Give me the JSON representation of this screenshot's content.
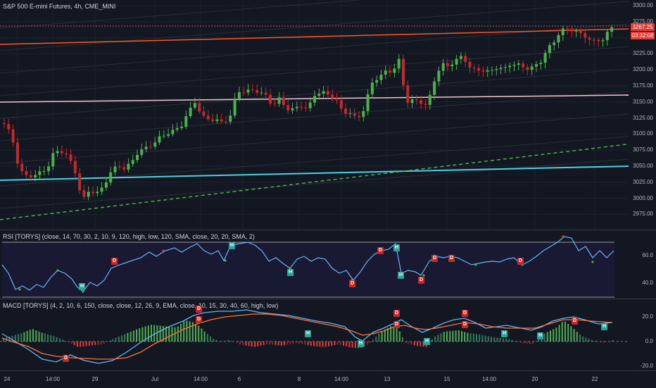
{
  "main": {
    "title": "S&P 500 E-mini Futures, 4h, CME_MINI",
    "price_ticks": [
      "3300.00",
      "3275.00",
      "3250.00",
      "3225.00",
      "3200.00",
      "3175.00",
      "3150.00",
      "3125.00",
      "3100.00",
      "3075.00",
      "3050.00",
      "3025.00",
      "3000.00",
      "2975.00"
    ],
    "last_price": "3267.25",
    "countdown": "03:32:08",
    "colors": {
      "up": "#4caf50",
      "down": "#c62828",
      "last_price": "#e53935"
    }
  },
  "rsi": {
    "title": "RSI [TORYS] (close, 14, 70, 30, 2, 10, 9, 120, high, low, 120, SMA, close, 20, 20, SMA, 2)",
    "ticks": [
      "60.0",
      "40.0"
    ],
    "markers": [
      "H",
      "D",
      "H",
      "H",
      "D",
      "D",
      "H",
      "H",
      "D",
      "D",
      "D",
      "D"
    ]
  },
  "macd": {
    "title": "MACD [TORYS] (4, 2, 10, 6, 150, close, close, 12, 26, 9, EMA, close, 10, 15, 30, 40, 60, high, low)",
    "ticks": [
      "20.0",
      "0.0",
      "-20.0"
    ],
    "markers": [
      "D",
      "D",
      "D",
      "H",
      "D",
      "D",
      "H",
      "H",
      "D",
      "D",
      "H",
      "D",
      "H",
      "H"
    ]
  },
  "time_axis": [
    "24",
    "14:00",
    "29",
    "Jul",
    "14:00",
    "6",
    "8",
    "14:00",
    "13",
    "15",
    "14:00",
    "20",
    "22"
  ]
}
